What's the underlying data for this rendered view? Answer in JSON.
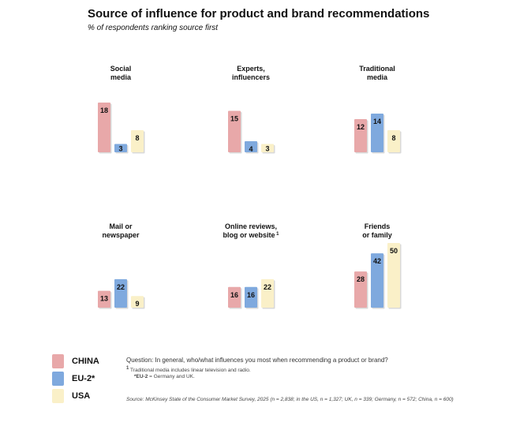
{
  "title": "Source of influence for product and brand recommendations",
  "subtitle": "% of respondents ranking source first",
  "colors": {
    "CHINA": "#e8a8a9",
    "EU-2*": "#7fa9de",
    "USA": "#faf0c8"
  },
  "legend": [
    "CHINA",
    "EU-2*",
    "USA"
  ],
  "notes": {
    "question": "Question: In general, who/what influences you most when recommending a product or brand?",
    "footnote_mark": "1",
    "footnote_text": "Traditional media includes linear television and radio.",
    "eu_note_key": "*EU-2",
    "eu_note_text": " = Germany and UK.",
    "source": "Source: McKinsey State of the Consumer Market Survey, 2025 (n = 2,838; in the US, n = 1,327; UK, n = 339; Germany, n = 572; China, n = 600)"
  },
  "chart_data": {
    "type": "bar",
    "title": "Source of influence for product and brand recommendations",
    "subtitle": "% of respondents ranking source first",
    "series_names": [
      "CHINA",
      "EU-2*",
      "USA"
    ],
    "panels": [
      {
        "title_lines": [
          "Social",
          "media"
        ],
        "values": [
          18,
          3,
          8
        ]
      },
      {
        "title_lines": [
          "Experts,",
          "influencers"
        ],
        "values": [
          15,
          4,
          3
        ]
      },
      {
        "title_lines": [
          "Traditional",
          "media"
        ],
        "values": [
          12,
          14,
          8
        ]
      },
      {
        "title_lines": [
          "Mail or",
          "newspaper"
        ],
        "values": [
          13,
          22,
          9
        ]
      },
      {
        "title_lines": [
          "Online reviews,",
          "blog or website"
        ],
        "footnote": "1",
        "values": [
          16,
          16,
          22
        ]
      },
      {
        "title_lines": [
          "Friends",
          "or family"
        ],
        "values": [
          28,
          42,
          50
        ]
      }
    ]
  }
}
